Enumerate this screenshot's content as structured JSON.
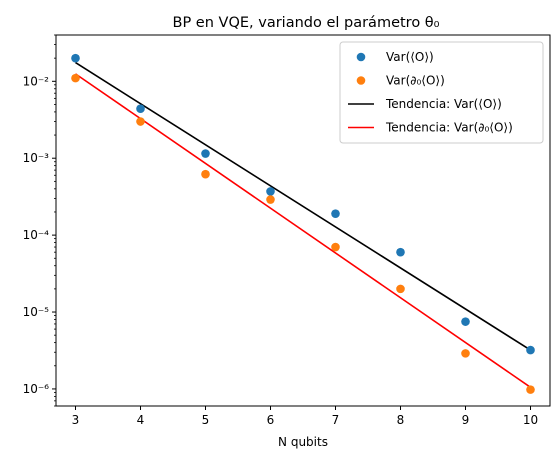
{
  "chart_data": {
    "type": "scatter",
    "title": "BP en VQE, variando el parámetro θ₀",
    "xlabel": "N qubits",
    "ylabel": "",
    "yscale": "log",
    "xlim": [
      2.7,
      10.3
    ],
    "ylim": [
      6e-07,
      0.04
    ],
    "x_ticks": [
      3,
      4,
      5,
      6,
      7,
      8,
      9,
      10
    ],
    "x_tick_labels": [
      "3",
      "4",
      "5",
      "6",
      "7",
      "8",
      "9",
      "10"
    ],
    "y_ticks": [
      1e-06,
      1e-05,
      0.0001,
      0.001,
      0.01
    ],
    "y_tick_labels": [
      "10⁻⁶",
      "10⁻⁵",
      "10⁻⁴",
      "10⁻³",
      "10⁻²"
    ],
    "legend_position": "top-right",
    "series": [
      {
        "name": "Var(⟨O⟩)",
        "kind": "scatter",
        "color": "#1f77b4",
        "x": [
          3,
          4,
          5,
          6,
          7,
          8,
          9,
          10
        ],
        "y": [
          0.02,
          0.0044,
          0.00115,
          0.00037,
          0.00019,
          6e-05,
          7.5e-06,
          3.2e-06
        ]
      },
      {
        "name": "Var(∂₀⟨O⟩)",
        "kind": "scatter",
        "color": "#ff7f0e",
        "x": [
          3,
          4,
          5,
          6,
          7,
          8,
          9,
          10
        ],
        "y": [
          0.011,
          0.003,
          0.00062,
          0.00029,
          7e-05,
          2e-05,
          2.9e-06,
          9.8e-07
        ]
      },
      {
        "name": "Tendencia: Var(⟨O⟩)",
        "kind": "line",
        "color": "#000000",
        "x": [
          3,
          10
        ],
        "y": [
          0.0175,
          3.2e-06
        ]
      },
      {
        "name": "Tendencia: Var(∂₀⟨O⟩)",
        "kind": "line",
        "color": "#ff0000",
        "x": [
          3,
          10
        ],
        "y": [
          0.0125,
          1.05e-06
        ]
      }
    ]
  }
}
